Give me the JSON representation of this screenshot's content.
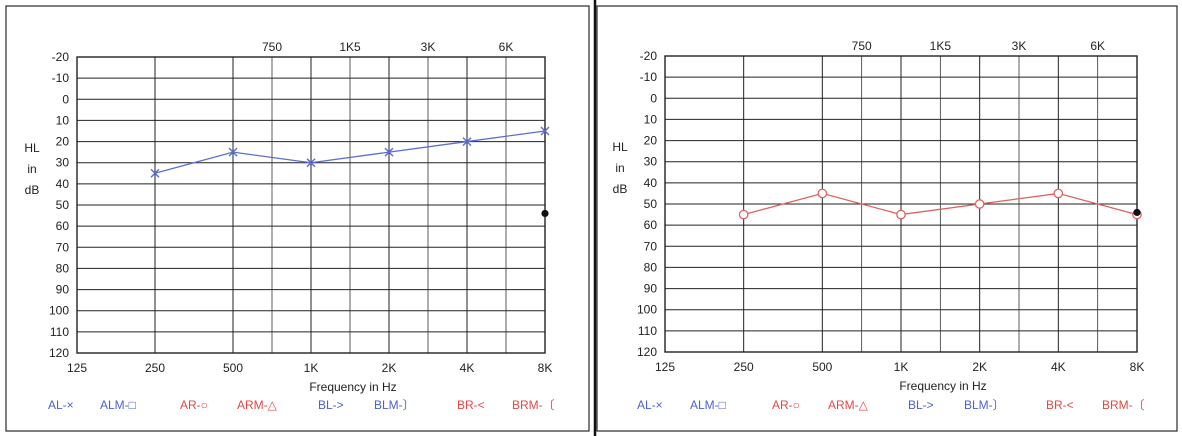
{
  "chart_data": [
    {
      "type": "line",
      "title": "",
      "xlabel": "Frequency in Hz",
      "ylabel_lines": [
        "HL",
        "in",
        "dB"
      ],
      "ylim": [
        -20,
        120
      ],
      "y_inverted": true,
      "grid": true,
      "y_ticks": [
        "-20",
        "-10",
        "0",
        "10",
        "20",
        "30",
        "40",
        "50",
        "60",
        "70",
        "80",
        "90",
        "100",
        "110",
        "120"
      ],
      "x_ticks_bottom": [
        "125",
        "250",
        "500",
        "1K",
        "2K",
        "4K",
        "8K"
      ],
      "x_ticks_top": [
        "750",
        "1K5",
        "3K",
        "6K"
      ],
      "categories": [
        "250",
        "500",
        "1K",
        "2K",
        "4K",
        "8K"
      ],
      "series": [
        {
          "name": "AL",
          "symbol": "x",
          "color": "#5a6ed2",
          "values": [
            35,
            25,
            30,
            25,
            20,
            15
          ]
        }
      ],
      "extra_points": [
        {
          "x": "8K",
          "y": 54,
          "color": "#111111"
        }
      ],
      "legend": [
        {
          "text": "AL-×",
          "color": "#4a62d0"
        },
        {
          "text": "ALM-□",
          "color": "#4a62d0"
        },
        {
          "text": "AR-○",
          "color": "#e04848"
        },
        {
          "text": "ARM-△",
          "color": "#e04848"
        },
        {
          "text": "BL->",
          "color": "#4a62d0"
        },
        {
          "text": "BLM-〕",
          "color": "#4a62d0"
        },
        {
          "text": "BR-<",
          "color": "#e04848"
        },
        {
          "text": "BRM-〔",
          "color": "#e04848"
        }
      ]
    },
    {
      "type": "line",
      "title": "",
      "xlabel": "Frequency in Hz",
      "ylabel_lines": [
        "HL",
        "in",
        "dB"
      ],
      "ylim": [
        -20,
        120
      ],
      "y_inverted": true,
      "grid": true,
      "y_ticks": [
        "-20",
        "-10",
        "0",
        "10",
        "20",
        "30",
        "40",
        "50",
        "60",
        "70",
        "80",
        "90",
        "100",
        "110",
        "120"
      ],
      "x_ticks_bottom": [
        "125",
        "250",
        "500",
        "1K",
        "2K",
        "4K",
        "8K"
      ],
      "x_ticks_top": [
        "750",
        "1K5",
        "3K",
        "6K"
      ],
      "categories": [
        "250",
        "500",
        "1K",
        "2K",
        "4K",
        "8K"
      ],
      "series": [
        {
          "name": "AR",
          "symbol": "o",
          "color": "#e06060",
          "values": [
            55,
            45,
            55,
            50,
            45,
            55
          ]
        }
      ],
      "extra_points": [
        {
          "x": "8K",
          "y": 54,
          "color": "#111111"
        }
      ],
      "legend": [
        {
          "text": "AL-×",
          "color": "#4a62d0"
        },
        {
          "text": "ALM-□",
          "color": "#4a62d0"
        },
        {
          "text": "AR-○",
          "color": "#e04848"
        },
        {
          "text": "ARM-△",
          "color": "#e04848"
        },
        {
          "text": "BL->",
          "color": "#4a62d0"
        },
        {
          "text": "BLM-〕",
          "color": "#4a62d0"
        },
        {
          "text": "BR-<",
          "color": "#e04848"
        },
        {
          "text": "BRM-〔",
          "color": "#e04848"
        }
      ]
    }
  ]
}
